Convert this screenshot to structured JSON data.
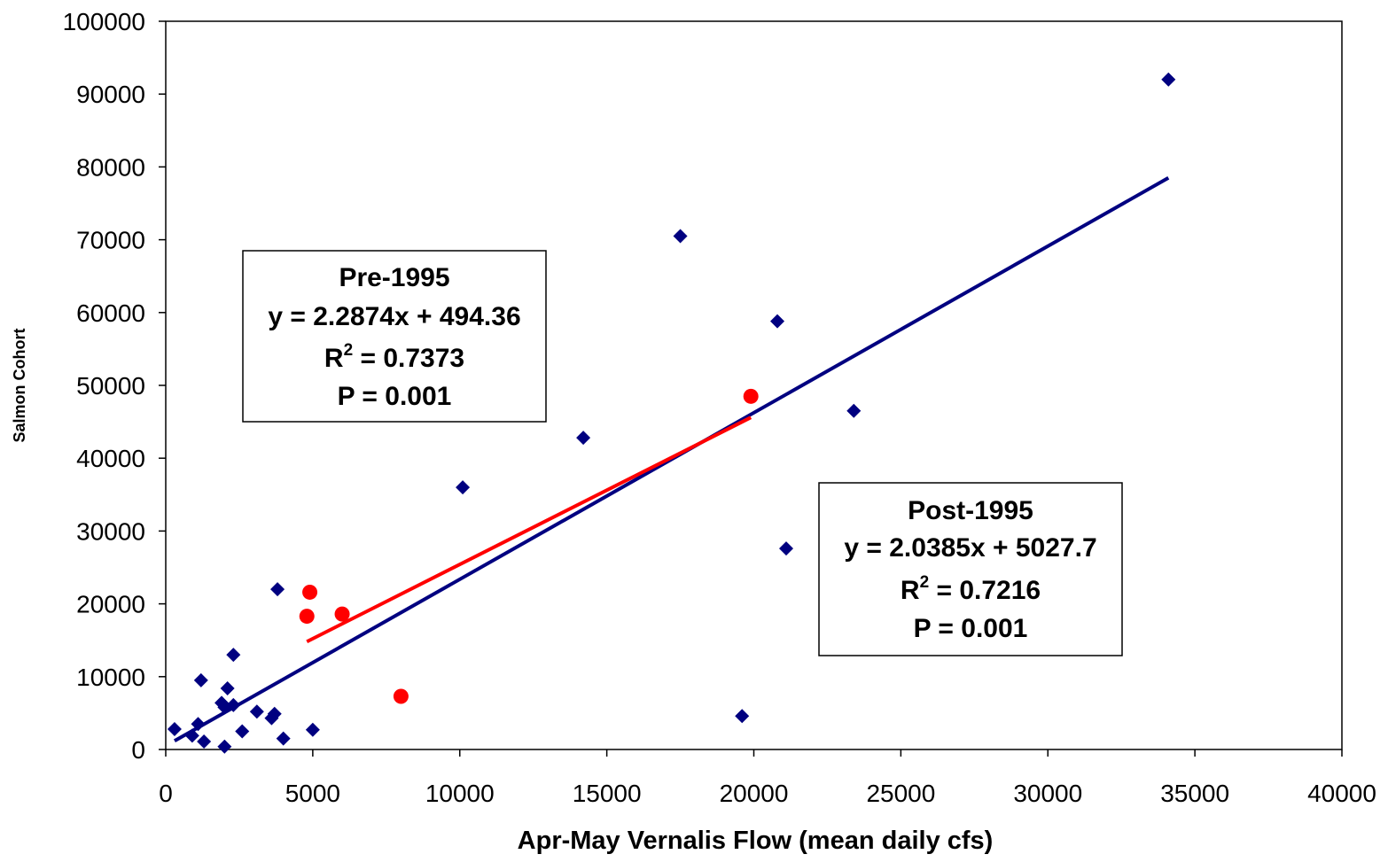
{
  "chart_data": {
    "type": "scatter",
    "xlabel": "Apr-May Vernalis Flow (mean daily cfs)",
    "ylabel": "Salmon Cohort",
    "xlim": [
      0,
      40000
    ],
    "ylim": [
      0,
      100000
    ],
    "x_ticks": [
      "0",
      "5000",
      "10000",
      "15000",
      "20000",
      "25000",
      "30000",
      "35000",
      "40000"
    ],
    "y_ticks": [
      "0",
      "10000",
      "20000",
      "30000",
      "40000",
      "50000",
      "60000",
      "70000",
      "80000",
      "90000",
      "100000"
    ],
    "grid": false,
    "legend": "none",
    "colors": {
      "pre": "#000080",
      "post": "#ff0000"
    },
    "series": [
      {
        "marker": "diamond",
        "points": [
          [
            300,
            2800
          ],
          [
            900,
            1900
          ],
          [
            1100,
            3500
          ],
          [
            1200,
            9500
          ],
          [
            1300,
            1100
          ],
          [
            1900,
            6400
          ],
          [
            2000,
            400
          ],
          [
            2000,
            5800
          ],
          [
            2100,
            8400
          ],
          [
            2300,
            13000
          ],
          [
            2300,
            6100
          ],
          [
            2600,
            2500
          ],
          [
            3100,
            5200
          ],
          [
            3600,
            4300
          ],
          [
            3700,
            4900
          ],
          [
            3800,
            22000
          ],
          [
            4000,
            1500
          ],
          [
            5000,
            2700
          ],
          [
            10100,
            36000
          ],
          [
            14200,
            42800
          ],
          [
            17500,
            70500
          ],
          [
            19600,
            4600
          ],
          [
            20800,
            58800
          ],
          [
            21100,
            27600
          ],
          [
            23400,
            46500
          ],
          [
            34100,
            92000
          ]
        ],
        "fit": {
          "x1": 300,
          "y1": 1180.58,
          "x2": 34100,
          "y2": 78496.2
        }
      },
      {
        "marker": "circle",
        "points": [
          [
            4800,
            18300
          ],
          [
            4900,
            21600
          ],
          [
            6000,
            18600
          ],
          [
            8000,
            7300
          ],
          [
            19900,
            48500
          ]
        ],
        "fit": {
          "x1": 4800,
          "y1": 14812.5,
          "x2": 19900,
          "y2": 45593.9
        }
      }
    ],
    "annotations": [
      {
        "title": "Pre-1995",
        "equation": "y = 2.2874x + 494.36",
        "r2_prefix": "R",
        "r2_exp": "2",
        "r2_value": " = 0.7373",
        "p_value": "P = 0.001"
      },
      {
        "title": "Post-1995",
        "equation": "y = 2.0385x + 5027.7",
        "r2_prefix": "R",
        "r2_exp": "2",
        "r2_value": " = 0.7216",
        "p_value": "P = 0.001"
      }
    ]
  }
}
